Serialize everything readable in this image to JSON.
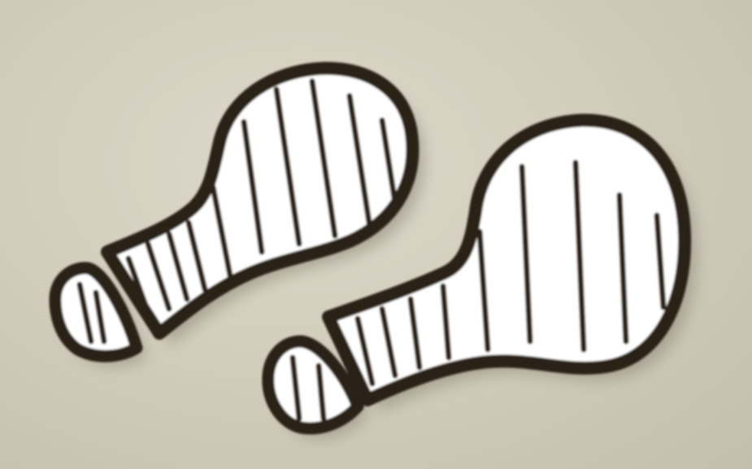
{
  "scene": {
    "subject": "footprints",
    "background_color": "#d3cdbd",
    "outline_color": "#2a2018",
    "fill_color": "#ffffff"
  }
}
